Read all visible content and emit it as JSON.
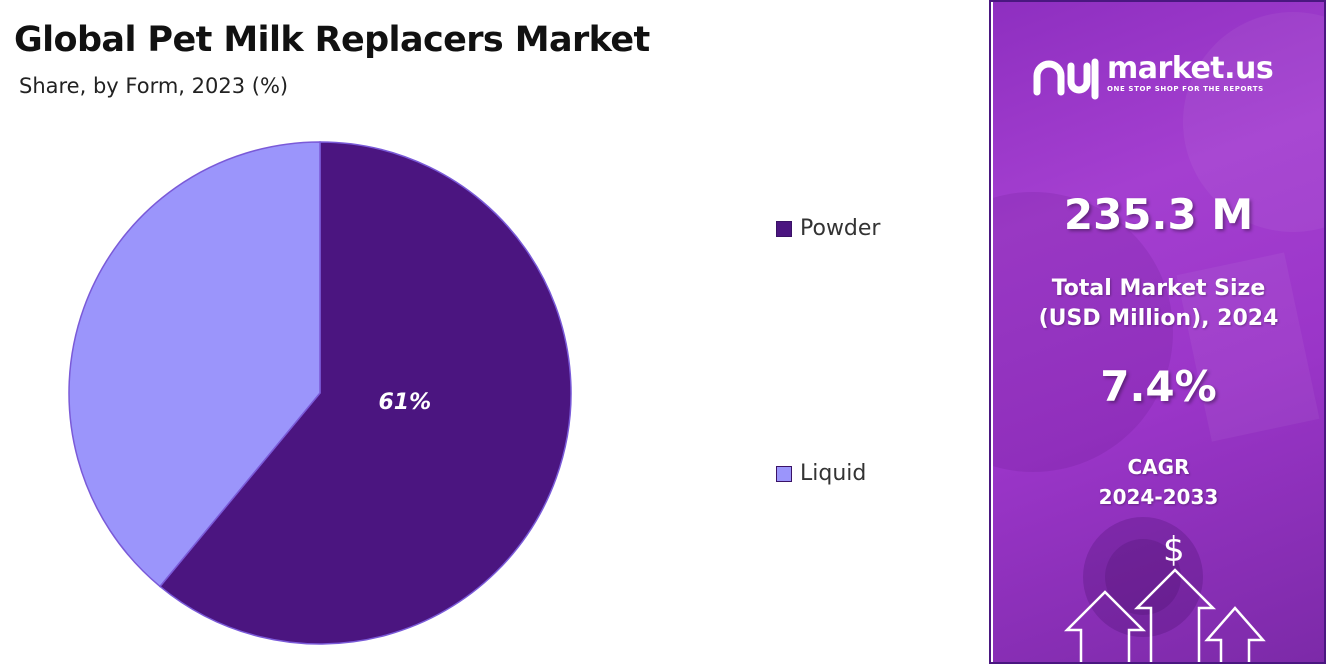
{
  "chart_data": {
    "type": "pie",
    "title": "Global Pet Milk Replacers Market",
    "subtitle": "Share, by Form, 2023 (%)",
    "categories": [
      "Powder",
      "Liquid"
    ],
    "values": [
      61,
      39
    ],
    "colors": [
      "#4b1580",
      "#9b95fb"
    ],
    "data_labels": [
      "61%",
      ""
    ],
    "legend_position": "right"
  },
  "sidebar": {
    "brand_name": "market.us",
    "brand_tagline": "ONE STOP SHOP FOR THE REPORTS",
    "market_size_value": "235.3 M",
    "market_size_label_line1": "Total Market Size",
    "market_size_label_line2": "(USD Million), 2024",
    "cagr_value": "7.4%",
    "cagr_label_line1": "CAGR",
    "cagr_label_line2": "2024-2033",
    "dollar_symbol": "$",
    "icons": [
      "market-us-logo-icon",
      "dollar-icon",
      "growth-arrows-icon"
    ]
  }
}
